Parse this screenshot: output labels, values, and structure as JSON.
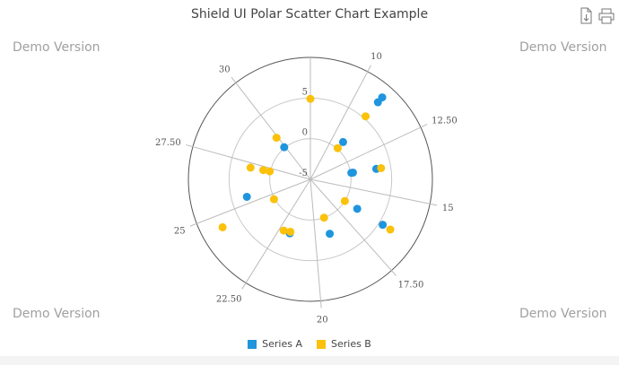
{
  "title": "Shield UI Polar Scatter Chart Example",
  "watermark": "Demo Version",
  "toolbar": {
    "export_icon": "file-download-icon",
    "print_icon": "printer-icon"
  },
  "colors": {
    "series_a": "#1f95dd",
    "series_b": "#fbc10b"
  },
  "chart_data": {
    "type": "scatter",
    "polar": true,
    "title": "Shield UI Polar Scatter Chart Example",
    "angle_axis": {
      "min": 8.1,
      "max": 32.56,
      "ticks": [
        "10",
        "12.50",
        "15",
        "17.50",
        "20",
        "22.50",
        "25",
        "27.50",
        "30"
      ],
      "tick_values": [
        10,
        12.5,
        15,
        17.5,
        20,
        22.5,
        25,
        27.5,
        30
      ]
    },
    "radial_axis": {
      "min": -5,
      "max": 10,
      "ticks": [
        "-5",
        "0",
        "5"
      ],
      "tick_values": [
        -5,
        0,
        5
      ]
    },
    "legend": "bottom",
    "series": [
      {
        "name": "Series A",
        "points": [
          [
            10.9,
            8.4
          ],
          [
            10.9,
            7.6
          ],
          [
            10.9,
            1.1
          ],
          [
            29.9,
            0.1
          ],
          [
            13.6,
            0.1
          ],
          [
            13.6,
            0.3
          ],
          [
            13.6,
            3.2
          ],
          [
            16.4,
            1.8
          ],
          [
            16.4,
            5.5
          ],
          [
            19.0,
            2.1
          ],
          [
            21.75,
            2.1
          ],
          [
            25.4,
            3.1
          ]
        ]
      },
      {
        "name": "Series B",
        "points": [
          [
            8.1,
            4.9
          ],
          [
            10.9,
            5.3
          ],
          [
            10.9,
            0.1
          ],
          [
            29.9,
            1.6
          ],
          [
            13.6,
            3.8
          ],
          [
            16.4,
            0
          ],
          [
            16.4,
            6.6
          ],
          [
            19.0,
            0
          ],
          [
            22.2,
            2.1
          ],
          [
            21.75,
            1.9
          ],
          [
            24.5,
            0.1
          ],
          [
            24.5,
            7.3
          ],
          [
            27.2,
            2.5
          ],
          [
            27.2,
            0.9
          ],
          [
            27.2,
            0.1
          ]
        ]
      }
    ]
  }
}
